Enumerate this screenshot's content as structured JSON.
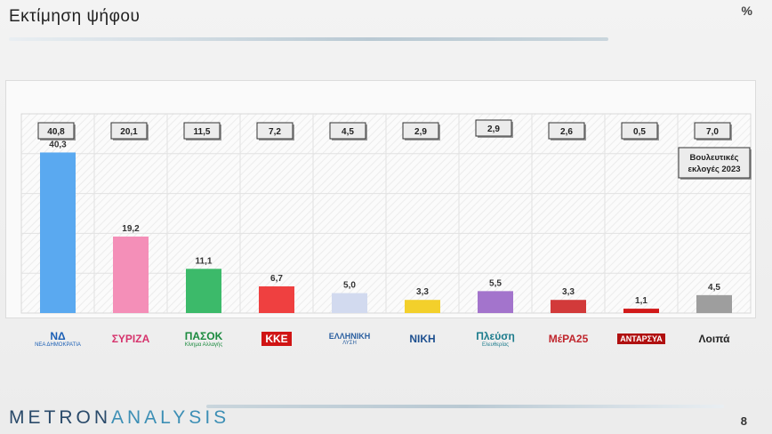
{
  "header": {
    "title": "Εκτίμηση ψήφου",
    "unit": "%"
  },
  "chart_data": {
    "type": "bar",
    "categories": [
      "ΝΔ",
      "ΣΥΡΙΖΑ",
      "ΠΑΣΟΚ",
      "ΚΚΕ",
      "Ελληνική Λύση",
      "ΝΙΚΗ",
      "Πλεύση Ελευθερίας",
      "ΜέΡΑ25",
      "ΑΝΤΑΡΣΥΑ",
      "Λοιπά"
    ],
    "values": [
      40.3,
      19.2,
      11.1,
      6.7,
      5.0,
      3.3,
      5.5,
      3.3,
      1.1,
      4.5
    ],
    "value_labels": [
      "40,3",
      "19,2",
      "11,1",
      "6,7",
      "5,0",
      "3,3",
      "5,5",
      "3,3",
      "1,1",
      "4,5"
    ],
    "reference_values": [
      40.8,
      20.1,
      11.5,
      7.2,
      4.5,
      2.9,
      2.9,
      2.6,
      0.5,
      7.0
    ],
    "reference_labels": [
      "40,8",
      "20,1",
      "11,5",
      "7,2",
      "4,5",
      "2,9",
      "2,9",
      "2,6",
      "0,5",
      "7,0"
    ],
    "reference_caption": "Βουλευτικές εκλογές 2023",
    "colors": [
      "#5aa9f0",
      "#f48fb8",
      "#3cba6a",
      "#ef4040",
      "#d2daef",
      "#f3d02b",
      "#a374cc",
      "#d23a3a",
      "#d21a1a",
      "#9e9e9e"
    ],
    "ylim": [
      0,
      50
    ],
    "grid": true
  },
  "logos": [
    {
      "name": "nd-logo",
      "text": "ΝΔ",
      "sub": "ΝΕΑ ΔΗΜΟΚΡΑΤΙΑ"
    },
    {
      "name": "syriza-logo",
      "text": "ΣΥΡΙΖΑ",
      "sub": ""
    },
    {
      "name": "pasok-logo",
      "text": "ΠΑΣΟΚ",
      "sub": "Κίνημα Αλλαγής"
    },
    {
      "name": "kke-logo",
      "text": "ΚΚΕ",
      "sub": ""
    },
    {
      "name": "elliniki-lysi-logo",
      "text": "ΕΛΛΗΝΙΚΗ",
      "sub": "ΛΥΣΗ"
    },
    {
      "name": "niki-logo",
      "text": "ΝΙΚΗ",
      "sub": ""
    },
    {
      "name": "plefsi-logo",
      "text": "Πλεύση",
      "sub": "Ελευθερίας"
    },
    {
      "name": "mera25-logo",
      "text": "ΜέΡΑ25",
      "sub": ""
    },
    {
      "name": "antarsya-logo",
      "text": "ΑΝΤΑΡΣΥΑ",
      "sub": ""
    },
    {
      "name": "others-label",
      "text": "Λοιπά",
      "sub": ""
    }
  ],
  "footer": {
    "brand_a": "METRON",
    "brand_b": "ANALYSIS",
    "page": "8"
  }
}
